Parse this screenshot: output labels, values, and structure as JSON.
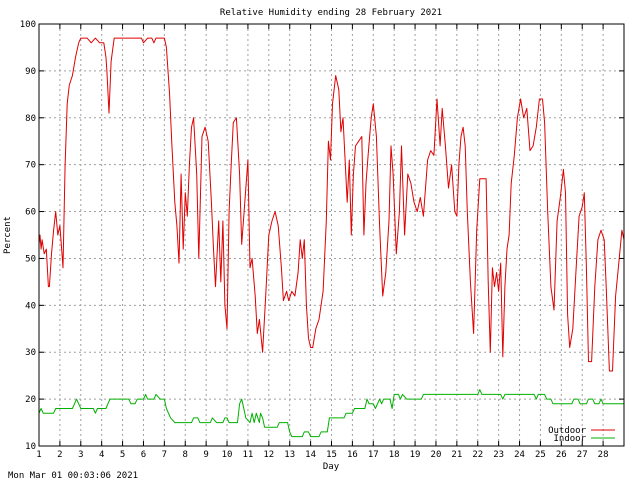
{
  "footer": {
    "timestamp": "Mon Mar 01 00:03:06 2021"
  },
  "chart_data": {
    "type": "line",
    "title": "Relative Humidity ending 28 February 2021",
    "xlabel": "Day",
    "ylabel": "Percent",
    "xlim": [
      1,
      29
    ],
    "ylim": [
      10,
      100
    ],
    "x_ticks": [
      1,
      2,
      3,
      4,
      5,
      6,
      7,
      8,
      9,
      10,
      11,
      12,
      13,
      14,
      15,
      16,
      17,
      18,
      19,
      20,
      21,
      22,
      23,
      24,
      25,
      26,
      27,
      28
    ],
    "y_ticks": [
      10,
      20,
      30,
      40,
      50,
      60,
      70,
      80,
      90,
      100
    ],
    "grid": true,
    "legend_position": "bottom-right",
    "series": [
      {
        "name": "Outdoor",
        "color": "#e00000",
        "points": [
          [
            1.0,
            53
          ],
          [
            1.05,
            55
          ],
          [
            1.1,
            52
          ],
          [
            1.15,
            54
          ],
          [
            1.25,
            51
          ],
          [
            1.35,
            52
          ],
          [
            1.45,
            44
          ],
          [
            1.5,
            44
          ],
          [
            1.6,
            51
          ],
          [
            1.7,
            56
          ],
          [
            1.8,
            60
          ],
          [
            1.9,
            55
          ],
          [
            2.0,
            57
          ],
          [
            2.1,
            51
          ],
          [
            2.15,
            48
          ],
          [
            2.25,
            70
          ],
          [
            2.35,
            83
          ],
          [
            2.45,
            87
          ],
          [
            2.6,
            89
          ],
          [
            2.75,
            93
          ],
          [
            2.9,
            96
          ],
          [
            3.0,
            97
          ],
          [
            3.3,
            97
          ],
          [
            3.5,
            96
          ],
          [
            3.7,
            97
          ],
          [
            3.9,
            96
          ],
          [
            4.1,
            96
          ],
          [
            4.2,
            93
          ],
          [
            4.25,
            90
          ],
          [
            4.35,
            81
          ],
          [
            4.45,
            92
          ],
          [
            4.6,
            97
          ],
          [
            5.0,
            97
          ],
          [
            5.5,
            97
          ],
          [
            5.9,
            97
          ],
          [
            6.0,
            96
          ],
          [
            6.2,
            97
          ],
          [
            6.4,
            97
          ],
          [
            6.5,
            96
          ],
          [
            6.6,
            97
          ],
          [
            7.0,
            97
          ],
          [
            7.1,
            95
          ],
          [
            7.25,
            85
          ],
          [
            7.35,
            75
          ],
          [
            7.5,
            62
          ],
          [
            7.6,
            57
          ],
          [
            7.7,
            49
          ],
          [
            7.8,
            68
          ],
          [
            7.9,
            52
          ],
          [
            8.0,
            64
          ],
          [
            8.1,
            59
          ],
          [
            8.2,
            70
          ],
          [
            8.3,
            78
          ],
          [
            8.4,
            80
          ],
          [
            8.55,
            68
          ],
          [
            8.65,
            50
          ],
          [
            8.8,
            76
          ],
          [
            8.95,
            78
          ],
          [
            9.1,
            75
          ],
          [
            9.25,
            62
          ],
          [
            9.35,
            52
          ],
          [
            9.45,
            44
          ],
          [
            9.6,
            58
          ],
          [
            9.7,
            45
          ],
          [
            9.8,
            58
          ],
          [
            9.9,
            40
          ],
          [
            10.0,
            35
          ],
          [
            10.1,
            60
          ],
          [
            10.2,
            70
          ],
          [
            10.3,
            79
          ],
          [
            10.45,
            80
          ],
          [
            10.6,
            68
          ],
          [
            10.7,
            53
          ],
          [
            10.85,
            62
          ],
          [
            11.0,
            71
          ],
          [
            11.1,
            48
          ],
          [
            11.2,
            50
          ],
          [
            11.35,
            42
          ],
          [
            11.45,
            34
          ],
          [
            11.55,
            37
          ],
          [
            11.7,
            30
          ],
          [
            11.85,
            42
          ],
          [
            12.0,
            55
          ],
          [
            12.15,
            58
          ],
          [
            12.3,
            60
          ],
          [
            12.45,
            57
          ],
          [
            12.6,
            48
          ],
          [
            12.7,
            41
          ],
          [
            12.85,
            43
          ],
          [
            12.95,
            41
          ],
          [
            13.1,
            43
          ],
          [
            13.25,
            42
          ],
          [
            13.4,
            47
          ],
          [
            13.5,
            54
          ],
          [
            13.6,
            50
          ],
          [
            13.7,
            54
          ],
          [
            13.8,
            40
          ],
          [
            13.9,
            33
          ],
          [
            14.0,
            31
          ],
          [
            14.1,
            31
          ],
          [
            14.25,
            35
          ],
          [
            14.4,
            37
          ],
          [
            14.6,
            43
          ],
          [
            14.75,
            58
          ],
          [
            14.85,
            75
          ],
          [
            14.95,
            71
          ],
          [
            15.05,
            83
          ],
          [
            15.2,
            89
          ],
          [
            15.35,
            86
          ],
          [
            15.45,
            77
          ],
          [
            15.55,
            80
          ],
          [
            15.65,
            71
          ],
          [
            15.75,
            62
          ],
          [
            15.85,
            71
          ],
          [
            15.95,
            55
          ],
          [
            16.05,
            68
          ],
          [
            16.15,
            74
          ],
          [
            16.3,
            75
          ],
          [
            16.45,
            76
          ],
          [
            16.55,
            55
          ],
          [
            16.65,
            66
          ],
          [
            16.75,
            72
          ],
          [
            16.9,
            80
          ],
          [
            17.0,
            83
          ],
          [
            17.15,
            76
          ],
          [
            17.3,
            57
          ],
          [
            17.45,
            42
          ],
          [
            17.6,
            47
          ],
          [
            17.75,
            58
          ],
          [
            17.85,
            74
          ],
          [
            17.95,
            68
          ],
          [
            18.1,
            51
          ],
          [
            18.25,
            60
          ],
          [
            18.35,
            74
          ],
          [
            18.5,
            55
          ],
          [
            18.65,
            68
          ],
          [
            18.8,
            66
          ],
          [
            18.95,
            62
          ],
          [
            19.1,
            60
          ],
          [
            19.25,
            63
          ],
          [
            19.4,
            59
          ],
          [
            19.6,
            71
          ],
          [
            19.75,
            73
          ],
          [
            19.9,
            72
          ],
          [
            20.05,
            84
          ],
          [
            20.2,
            74
          ],
          [
            20.3,
            82
          ],
          [
            20.45,
            74
          ],
          [
            20.6,
            65
          ],
          [
            20.75,
            70
          ],
          [
            20.9,
            60
          ],
          [
            21.0,
            59
          ],
          [
            21.1,
            70
          ],
          [
            21.2,
            76
          ],
          [
            21.3,
            78
          ],
          [
            21.4,
            74
          ],
          [
            21.5,
            60
          ],
          [
            21.65,
            45
          ],
          [
            21.8,
            34
          ],
          [
            21.95,
            56
          ],
          [
            22.1,
            67
          ],
          [
            22.25,
            67
          ],
          [
            22.4,
            67
          ],
          [
            22.5,
            45
          ],
          [
            22.6,
            30
          ],
          [
            22.7,
            48
          ],
          [
            22.8,
            44
          ],
          [
            22.9,
            47
          ],
          [
            23.0,
            43
          ],
          [
            23.1,
            49
          ],
          [
            23.2,
            29
          ],
          [
            23.3,
            44
          ],
          [
            23.4,
            52
          ],
          [
            23.5,
            55
          ],
          [
            23.6,
            66
          ],
          [
            23.75,
            72
          ],
          [
            23.9,
            80
          ],
          [
            24.05,
            84
          ],
          [
            24.2,
            80
          ],
          [
            24.35,
            82
          ],
          [
            24.5,
            73
          ],
          [
            24.65,
            74
          ],
          [
            24.8,
            78
          ],
          [
            24.95,
            84
          ],
          [
            25.1,
            84
          ],
          [
            25.2,
            79
          ],
          [
            25.35,
            60
          ],
          [
            25.5,
            44
          ],
          [
            25.65,
            39
          ],
          [
            25.8,
            58
          ],
          [
            25.95,
            63
          ],
          [
            26.1,
            69
          ],
          [
            26.2,
            64
          ],
          [
            26.3,
            38
          ],
          [
            26.4,
            31
          ],
          [
            26.55,
            35
          ],
          [
            26.7,
            47
          ],
          [
            26.85,
            59
          ],
          [
            27.0,
            61
          ],
          [
            27.1,
            64
          ],
          [
            27.2,
            48
          ],
          [
            27.3,
            28
          ],
          [
            27.45,
            28
          ],
          [
            27.6,
            44
          ],
          [
            27.75,
            54
          ],
          [
            27.9,
            56
          ],
          [
            28.05,
            54
          ],
          [
            28.15,
            44
          ],
          [
            28.3,
            26
          ],
          [
            28.45,
            26
          ],
          [
            28.6,
            42
          ],
          [
            28.75,
            49
          ],
          [
            28.9,
            56
          ],
          [
            29.0,
            54
          ]
        ]
      },
      {
        "name": "Indoor",
        "color": "#00b000",
        "points": [
          [
            1.0,
            17
          ],
          [
            1.1,
            18
          ],
          [
            1.2,
            17
          ],
          [
            1.7,
            17
          ],
          [
            1.8,
            18
          ],
          [
            2.6,
            18
          ],
          [
            2.7,
            19
          ],
          [
            2.8,
            20
          ],
          [
            2.9,
            19
          ],
          [
            3.0,
            18
          ],
          [
            3.6,
            18
          ],
          [
            3.7,
            17
          ],
          [
            3.8,
            18
          ],
          [
            4.2,
            18
          ],
          [
            4.3,
            19
          ],
          [
            4.4,
            20
          ],
          [
            5.3,
            20
          ],
          [
            5.4,
            19
          ],
          [
            5.6,
            19
          ],
          [
            5.7,
            20
          ],
          [
            6.0,
            20
          ],
          [
            6.1,
            21
          ],
          [
            6.2,
            20
          ],
          [
            6.5,
            20
          ],
          [
            6.6,
            21
          ],
          [
            6.8,
            20
          ],
          [
            7.0,
            20
          ],
          [
            7.1,
            18
          ],
          [
            7.3,
            16
          ],
          [
            7.5,
            15
          ],
          [
            8.3,
            15
          ],
          [
            8.4,
            16
          ],
          [
            8.6,
            16
          ],
          [
            8.7,
            15
          ],
          [
            9.2,
            15
          ],
          [
            9.3,
            16
          ],
          [
            9.5,
            15
          ],
          [
            9.8,
            15
          ],
          [
            9.9,
            16
          ],
          [
            10.0,
            16
          ],
          [
            10.1,
            15
          ],
          [
            10.5,
            15
          ],
          [
            10.6,
            19
          ],
          [
            10.7,
            20
          ],
          [
            10.8,
            18
          ],
          [
            10.9,
            16
          ],
          [
            11.1,
            15
          ],
          [
            11.2,
            17
          ],
          [
            11.3,
            15
          ],
          [
            11.4,
            17
          ],
          [
            11.55,
            15
          ],
          [
            11.6,
            17
          ],
          [
            11.7,
            16
          ],
          [
            11.8,
            14
          ],
          [
            12.4,
            14
          ],
          [
            12.5,
            15
          ],
          [
            12.9,
            15
          ],
          [
            13.0,
            13
          ],
          [
            13.1,
            12
          ],
          [
            13.6,
            12
          ],
          [
            13.7,
            13
          ],
          [
            13.9,
            13
          ],
          [
            14.0,
            12
          ],
          [
            14.4,
            12
          ],
          [
            14.5,
            13
          ],
          [
            14.8,
            13
          ],
          [
            14.9,
            16
          ],
          [
            15.6,
            16
          ],
          [
            15.7,
            17
          ],
          [
            16.0,
            17
          ],
          [
            16.1,
            18
          ],
          [
            16.6,
            18
          ],
          [
            16.7,
            20
          ],
          [
            16.8,
            19
          ],
          [
            17.0,
            19
          ],
          [
            17.1,
            18
          ],
          [
            17.3,
            20
          ],
          [
            17.4,
            19
          ],
          [
            17.5,
            20
          ],
          [
            17.8,
            20
          ],
          [
            17.9,
            18
          ],
          [
            18.0,
            21
          ],
          [
            18.2,
            21
          ],
          [
            18.3,
            20
          ],
          [
            18.4,
            21
          ],
          [
            18.6,
            20
          ],
          [
            19.3,
            20
          ],
          [
            19.4,
            21
          ],
          [
            22.0,
            21
          ],
          [
            22.1,
            22
          ],
          [
            22.2,
            21
          ],
          [
            23.1,
            21
          ],
          [
            23.2,
            20
          ],
          [
            23.3,
            21
          ],
          [
            24.7,
            21
          ],
          [
            24.8,
            20
          ],
          [
            24.9,
            21
          ],
          [
            25.2,
            21
          ],
          [
            25.3,
            20
          ],
          [
            25.5,
            20
          ],
          [
            25.6,
            19
          ],
          [
            26.5,
            19
          ],
          [
            26.6,
            20
          ],
          [
            26.8,
            20
          ],
          [
            26.9,
            19
          ],
          [
            27.2,
            19
          ],
          [
            27.3,
            20
          ],
          [
            27.5,
            20
          ],
          [
            27.6,
            19
          ],
          [
            27.8,
            19
          ],
          [
            27.9,
            20
          ],
          [
            28.0,
            19
          ],
          [
            29.0,
            19
          ]
        ]
      }
    ]
  }
}
